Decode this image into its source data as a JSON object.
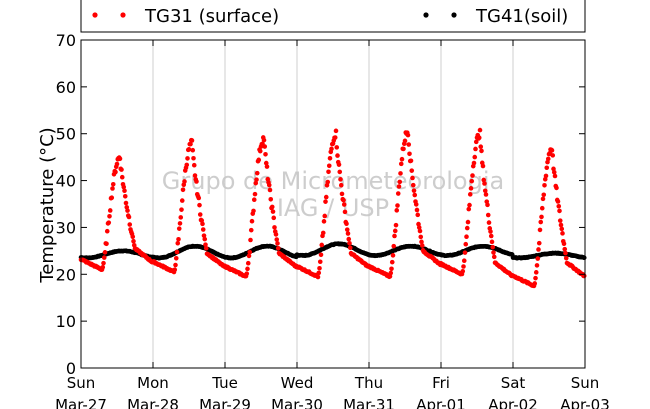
{
  "chart_data": {
    "type": "scatter",
    "ylabel": "Temperature (°C)",
    "xlabel": "",
    "ylim": [
      0,
      70
    ],
    "yticks": [
      0,
      10,
      20,
      30,
      40,
      50,
      60,
      70
    ],
    "x_range": [
      "2016-03-27",
      "2016-04-03"
    ],
    "xticks": [
      {
        "day": "Sun",
        "date": "Mar-27"
      },
      {
        "day": "Mon",
        "date": "Mar-28"
      },
      {
        "day": "Tue",
        "date": "Mar-29"
      },
      {
        "day": "Wed",
        "date": "Mar-30"
      },
      {
        "day": "Thu",
        "date": "Mar-31"
      },
      {
        "day": "Fri",
        "date": "Apr-01"
      },
      {
        "day": "Sat",
        "date": "Apr-02"
      },
      {
        "day": "Sun",
        "date": "Apr-03"
      }
    ],
    "grid": "vertical",
    "legend_placement": "top",
    "watermark": [
      "Grupo de Micrometeorologia",
      "IAG / USP"
    ],
    "series": [
      {
        "name": "TG31 (surface)",
        "color": "#ff0000",
        "daily": [
          {
            "date": "2016-03-27",
            "min": 21,
            "peak": 45
          },
          {
            "date": "2016-03-28",
            "min": 20.5,
            "peak": 48
          },
          {
            "date": "2016-03-29",
            "min": 19.5,
            "peak": 49
          },
          {
            "date": "2016-03-30",
            "min": 19.5,
            "peak": 50
          },
          {
            "date": "2016-03-31",
            "min": 19.5,
            "peak": 50.5
          },
          {
            "date": "2016-04-01",
            "min": 20,
            "peak": 50
          },
          {
            "date": "2016-04-02",
            "min": 17.5,
            "peak": 47
          }
        ]
      },
      {
        "name": "TG41(soil)",
        "color": "#000000",
        "daily": [
          {
            "date": "2016-03-27",
            "min": 23.5,
            "max": 25
          },
          {
            "date": "2016-03-28",
            "min": 23.5,
            "max": 26
          },
          {
            "date": "2016-03-29",
            "min": 23.5,
            "max": 26
          },
          {
            "date": "2016-03-30",
            "min": 24,
            "max": 26.5
          },
          {
            "date": "2016-03-31",
            "min": 24,
            "max": 26
          },
          {
            "date": "2016-04-01",
            "min": 24,
            "max": 26
          },
          {
            "date": "2016-04-02",
            "min": 23.5,
            "max": 24.5
          }
        ]
      }
    ]
  }
}
